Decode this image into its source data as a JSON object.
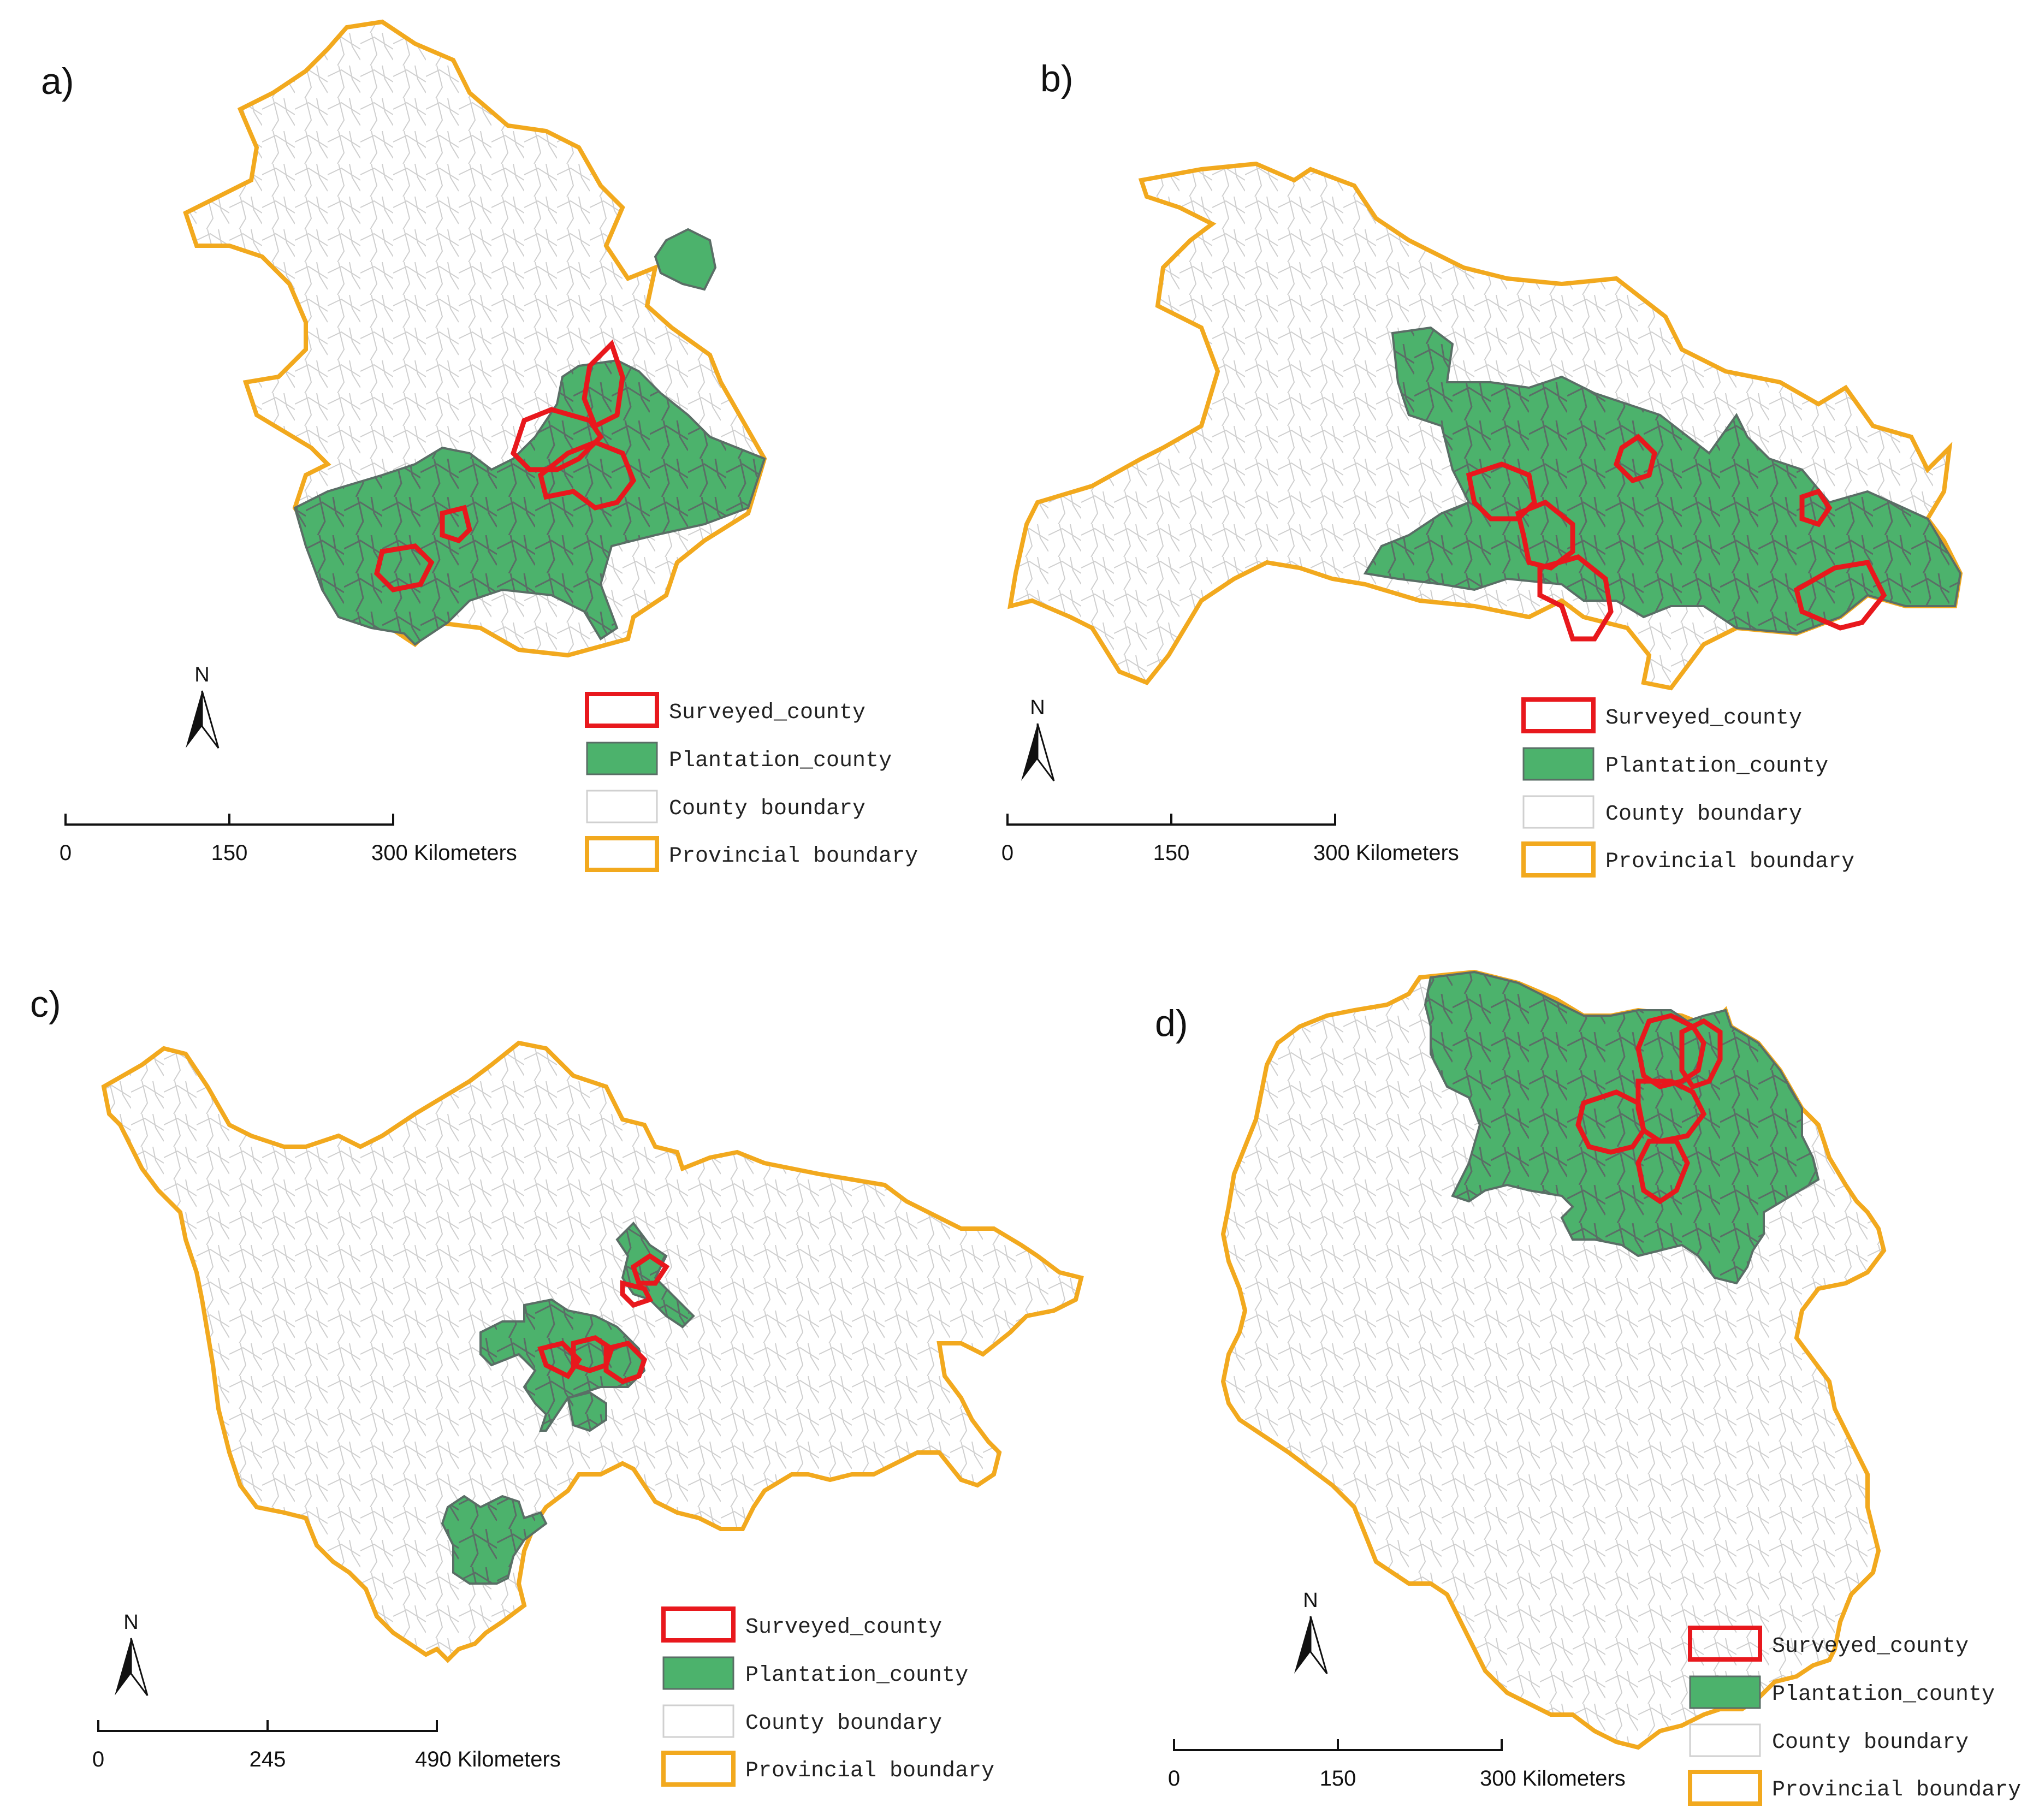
{
  "colors": {
    "surveyed": "#e8181d",
    "plantation": "#4cb26c",
    "county_boundary": "#c8c8c8",
    "provincial": "#f2a91e",
    "plantation_edge": "#5a6e66"
  },
  "legend": {
    "surveyed": "Surveyed_county",
    "plantation": "Plantation_county",
    "county": "County boundary",
    "provincial": "Provincial boundary"
  },
  "north_label": "N",
  "panels": [
    {
      "label": "a)",
      "scale": {
        "ticks": [
          "0",
          "150",
          "300 Kilometers"
        ]
      }
    },
    {
      "label": "b)",
      "scale": {
        "ticks": [
          "0",
          "150",
          "300 Kilometers"
        ]
      }
    },
    {
      "label": "c)",
      "scale": {
        "ticks": [
          "0",
          "245",
          "490 Kilometers"
        ]
      }
    },
    {
      "label": "d)",
      "scale": {
        "ticks": [
          "0",
          "150",
          "300 Kilometers"
        ]
      }
    }
  ]
}
